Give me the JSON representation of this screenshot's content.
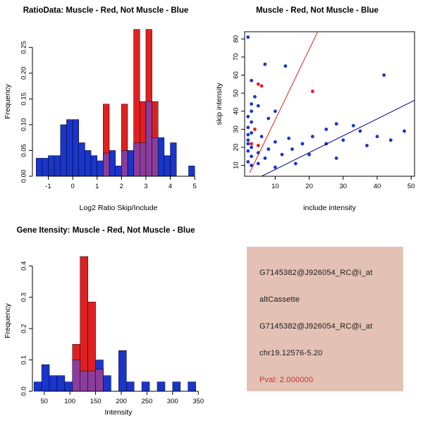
{
  "window": {
    "bg": "#ffffff"
  },
  "info_panel": {
    "bg": "#e3c2b5",
    "lines": [
      {
        "text": "G7145382@J926054_RC@i_at",
        "color": "#1a1a1a"
      },
      {
        "text": "altCassette",
        "color": "#1a1a1a"
      },
      {
        "text": "G7145382@J926054_RC@i_at",
        "color": "#1a1a1a"
      },
      {
        "text": "chr19.12576-5.20",
        "color": "#1a1a1a"
      },
      {
        "text": "Pval: 2.000000",
        "color": "#d42a2a"
      }
    ]
  },
  "chart_data": [
    {
      "id": "ratio-hist",
      "type": "bar",
      "title": "RatioData: Muscle - Red, Not Muscle - Blue",
      "xlabel": "Log2 Ratio Skip/Include",
      "ylabel": "Frequency",
      "bins": {
        "start": -1.5,
        "width": 0.25
      },
      "xlim": [
        -1.65,
        5.4
      ],
      "ylim": [
        0,
        0.29
      ],
      "xticks": [
        -1,
        0,
        1,
        2,
        3,
        4,
        5
      ],
      "yticks": [
        0,
        0.05,
        0.1,
        0.15,
        0.2,
        0.25
      ],
      "xtick_dec": 0,
      "ytick_dec": 2,
      "grid": false,
      "legend": "none",
      "overlap_color": "#8b3d9b",
      "series": [
        {
          "name": "Not Muscle",
          "color": "#1a35cc",
          "values": [
            0.035,
            0.035,
            0.04,
            0.04,
            0.1,
            0.11,
            0.11,
            0.065,
            0.05,
            0.04,
            0.03,
            0.045,
            0.05,
            0.02,
            0.05,
            0.05,
            0.065,
            0.065,
            0.145,
            0.075,
            0.075,
            0.04,
            0.065,
            0,
            0,
            0.02,
            0
          ]
        },
        {
          "name": "Muscle",
          "color": "#e02020",
          "values": [
            0,
            0,
            0,
            0,
            0,
            0,
            0,
            0,
            0,
            0,
            0,
            0.14,
            0,
            0,
            0.14,
            0,
            0.285,
            0.145,
            0.285,
            0.145,
            0,
            0,
            0,
            0,
            0,
            0,
            0
          ]
        }
      ]
    },
    {
      "id": "scatter",
      "type": "scatter",
      "title": "Muscle - Red, Not Muscle - Blue",
      "xlabel": "include intensity",
      "ylabel": "skip intensity",
      "xlim": [
        1,
        51
      ],
      "ylim": [
        4,
        84
      ],
      "xticks": [
        10,
        20,
        30,
        40,
        50
      ],
      "yticks": [
        10,
        20,
        30,
        40,
        50,
        60,
        70,
        80
      ],
      "xtick_dec": 0,
      "ytick_dec": 0,
      "grid": false,
      "legend": "none",
      "series": [
        {
          "name": "Not Muscle",
          "color": "#1a35cc",
          "points": [
            [
              2,
              81
            ],
            [
              7,
              66
            ],
            [
              13,
              65
            ],
            [
              3,
              57
            ],
            [
              42,
              60
            ],
            [
              4,
              48
            ],
            [
              3,
              44
            ],
            [
              5,
              43
            ],
            [
              3,
              40
            ],
            [
              10,
              40
            ],
            [
              2,
              37
            ],
            [
              8,
              36
            ],
            [
              3,
              34
            ],
            [
              28,
              33
            ],
            [
              33,
              32
            ],
            [
              2,
              31
            ],
            [
              25,
              30
            ],
            [
              35,
              29
            ],
            [
              48,
              29
            ],
            [
              3,
              28
            ],
            [
              2,
              27
            ],
            [
              6,
              26
            ],
            [
              21,
              26
            ],
            [
              40,
              26
            ],
            [
              14,
              25
            ],
            [
              2,
              24
            ],
            [
              30,
              24
            ],
            [
              44,
              24
            ],
            [
              10,
              23
            ],
            [
              2,
              22
            ],
            [
              18,
              22
            ],
            [
              25,
              22
            ],
            [
              37,
              21
            ],
            [
              3,
              20
            ],
            [
              8,
              19
            ],
            [
              15,
              19
            ],
            [
              2,
              18
            ],
            [
              5,
              17
            ],
            [
              12,
              16
            ],
            [
              20,
              16
            ],
            [
              3,
              15
            ],
            [
              7,
              14
            ],
            [
              28,
              14
            ],
            [
              2,
              12
            ],
            [
              5,
              11
            ],
            [
              16,
              11
            ],
            [
              3,
              10
            ],
            [
              10,
              9
            ]
          ]
        },
        {
          "name": "Muscle",
          "color": "#e02020",
          "points": [
            [
              5,
              55
            ],
            [
              6,
              54
            ],
            [
              21,
              51
            ],
            [
              4,
              30
            ],
            [
              3,
              22
            ],
            [
              5,
              21
            ]
          ]
        }
      ],
      "fit_lines": [
        {
          "name": "muscle-fit",
          "color": "#e02020",
          "x1": 2.5,
          "y1": 6,
          "x2": 22.5,
          "y2": 84
        },
        {
          "name": "not-muscle-fit",
          "color": "#00008b",
          "x1": 6,
          "y1": 4,
          "x2": 51,
          "y2": 46
        }
      ]
    },
    {
      "id": "gene-hist",
      "type": "bar",
      "title": "Gene Itensity: Muscle - Red, Not Muscle - Blue",
      "xlabel": "Intensity",
      "ylabel": "Frequency",
      "bins": {
        "start": 30,
        "width": 15
      },
      "xlim": [
        27,
        362
      ],
      "ylim": [
        0,
        0.45
      ],
      "xticks": [
        50,
        100,
        150,
        200,
        250,
        300,
        350
      ],
      "yticks": [
        0,
        0.1,
        0.2,
        0.3,
        0.4
      ],
      "xtick_dec": 0,
      "ytick_dec": 1,
      "grid": false,
      "legend": "none",
      "overlap_color": "#8b3d9b",
      "series": [
        {
          "name": "Not Muscle",
          "color": "#1a35cc",
          "values": [
            0.03,
            0.085,
            0.05,
            0.05,
            0.03,
            0.1,
            0.065,
            0.065,
            0.1,
            0.05,
            0,
            0.13,
            0.03,
            0,
            0.03,
            0,
            0.03,
            0,
            0.03,
            0,
            0.03,
            0
          ]
        },
        {
          "name": "Muscle",
          "color": "#e02020",
          "values": [
            0,
            0,
            0,
            0,
            0,
            0.15,
            0.43,
            0.285,
            0.07,
            0,
            0,
            0,
            0,
            0,
            0,
            0,
            0,
            0,
            0,
            0,
            0,
            0
          ]
        }
      ]
    }
  ]
}
